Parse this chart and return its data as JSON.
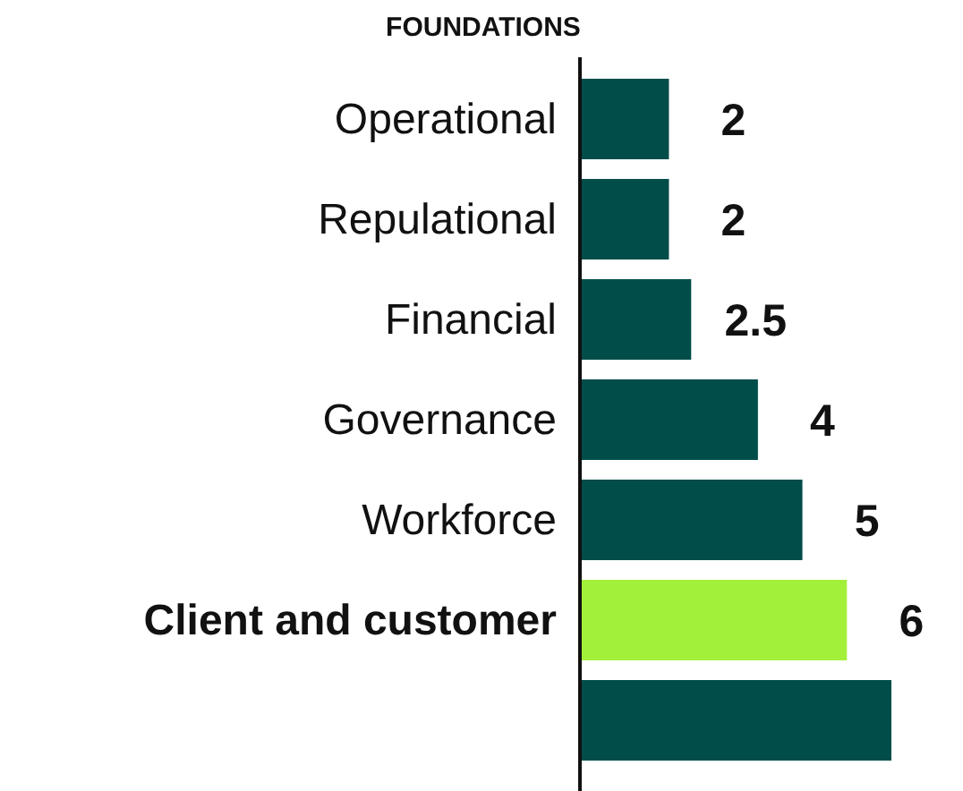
{
  "chart_data": {
    "type": "bar",
    "orientation": "horizontal",
    "title": "FOUNDATIONS",
    "categories": [
      "Operational",
      "Repulational",
      "Financial",
      "Governance",
      "Workforce",
      "Client and customer",
      null
    ],
    "values": [
      2,
      2,
      2.5,
      4,
      5,
      6,
      7
    ],
    "value_labels": [
      "2",
      "2",
      "2.5",
      "4",
      "5",
      "6",
      null
    ],
    "colors": [
      "#004d4a",
      "#004d4a",
      "#004d4a",
      "#004d4a",
      "#004d4a",
      "#a3f03a",
      "#004d4a"
    ]
  }
}
